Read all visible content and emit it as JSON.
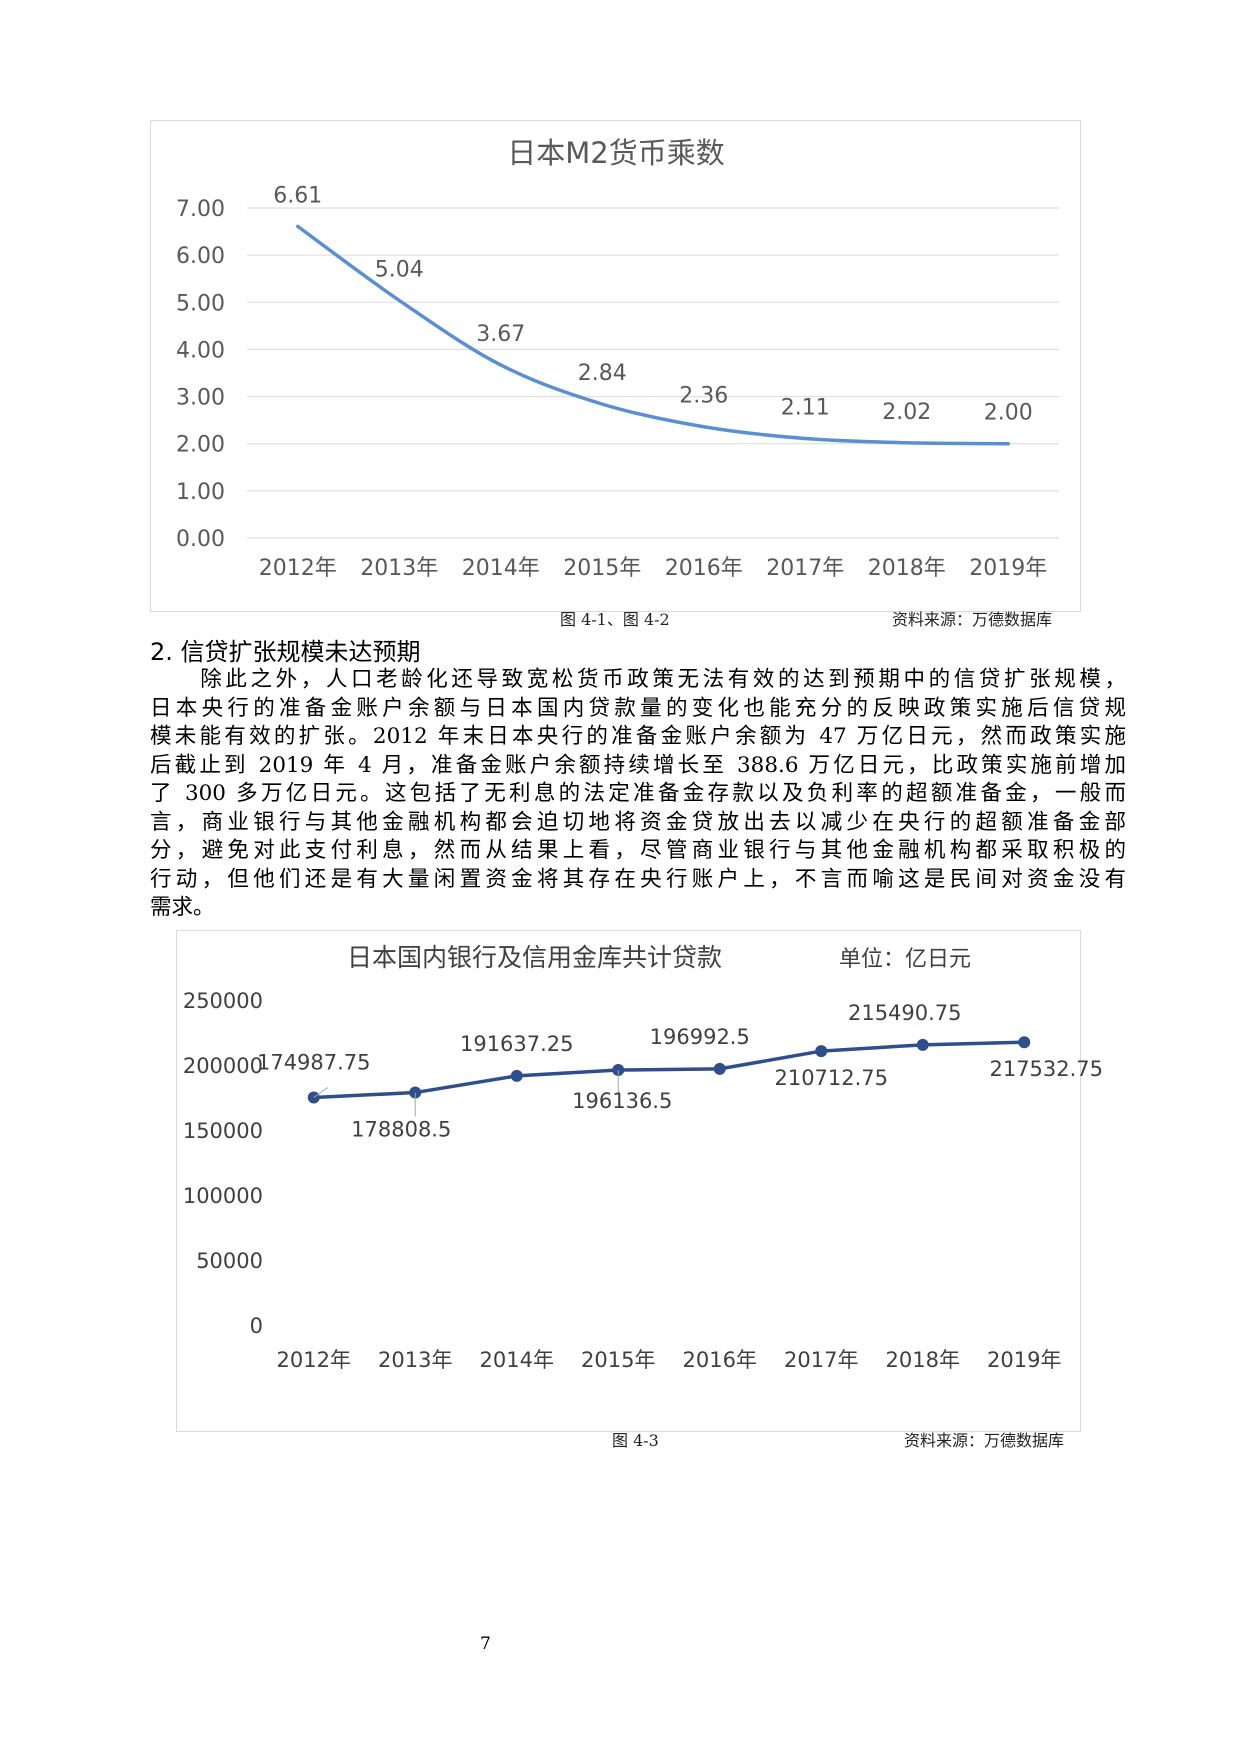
{
  "chart1": {
    "caption": "图 4-1、图 4-2",
    "source": "资料来源：万德数据库",
    "chart_data": {
      "type": "line",
      "title": "日本M2货币乘数",
      "categories": [
        "2012年",
        "2013年",
        "2014年",
        "2015年",
        "2016年",
        "2017年",
        "2018年",
        "2019年"
      ],
      "values": [
        6.61,
        5.04,
        3.67,
        2.84,
        2.36,
        2.11,
        2.02,
        2.0
      ],
      "value_labels": [
        "6.61",
        "5.04",
        "3.67",
        "2.84",
        "2.36",
        "2.11",
        "2.02",
        "2.00"
      ],
      "y_ticks": [
        "0.00",
        "1.00",
        "2.00",
        "3.00",
        "4.00",
        "5.00",
        "6.00",
        "7.00"
      ],
      "ylim": [
        0,
        7
      ],
      "grid": true,
      "smooth": true,
      "markers": false,
      "legend": "none",
      "colors": {
        "line": "#5b8fd0",
        "grid": "#d9d9d9",
        "text": "#595959"
      }
    }
  },
  "section": {
    "heading": "2. 信贷扩张规模未达预期",
    "lines": [
      "　　除此之外，人口老龄化还导致宽松货币政策无法有效的达到预期中的信贷扩张规模，",
      "日本央行的准备金账户余额与日本国内贷款量的变化也能充分的反映政策实施后信贷规",
      "模未能有效的扩张。2012 年末日本央行的准备金账户余额为 47 万亿日元，然而政策实施",
      "后截止到 2019 年 4 月，准备金账户余额持续增长至 388.6 万亿日元，比政策实施前增加",
      "了 300 多万亿日元。这包括了无利息的法定准备金存款以及负利率的超额准备金，一般而",
      "言，商业银行与其他金融机构都会迫切地将资金贷放出去以减少在央行的超额准备金部",
      "分，避免对此支付利息，然而从结果上看，尽管商业银行与其他金融机构都采取积极的",
      "行动，但他们还是有大量闲置资金将其存在央行账户上，不言而喻这是民间对资金没有",
      "需求。"
    ]
  },
  "chart2": {
    "caption": "图 4-3",
    "source": "资料来源：万德数据库",
    "chart_data": {
      "type": "line",
      "title": "日本国内银行及信用金库共计贷款",
      "unit_note": "单位：亿日元",
      "categories": [
        "2012年",
        "2013年",
        "2014年",
        "2015年",
        "2016年",
        "2017年",
        "2018年",
        "2019年"
      ],
      "values": [
        174987.75,
        178808.5,
        191637.25,
        196136.5,
        196992.5,
        210712.75,
        215490.75,
        217532.75
      ],
      "value_labels": [
        "174987.75",
        "178808.5",
        "191637.25",
        "196136.5",
        "196992.5",
        "210712.75",
        "215490.75",
        "217532.75"
      ],
      "y_ticks": [
        "0",
        "50000",
        "100000",
        "150000",
        "200000",
        "250000"
      ],
      "ylim": [
        0,
        250000
      ],
      "grid": false,
      "markers": true,
      "legend": "none",
      "colors": {
        "line": "#2f4e8a",
        "marker": "#2f4e8a",
        "leader": "#a6a6a6",
        "text": "#404040"
      }
    }
  },
  "page_number": "7"
}
